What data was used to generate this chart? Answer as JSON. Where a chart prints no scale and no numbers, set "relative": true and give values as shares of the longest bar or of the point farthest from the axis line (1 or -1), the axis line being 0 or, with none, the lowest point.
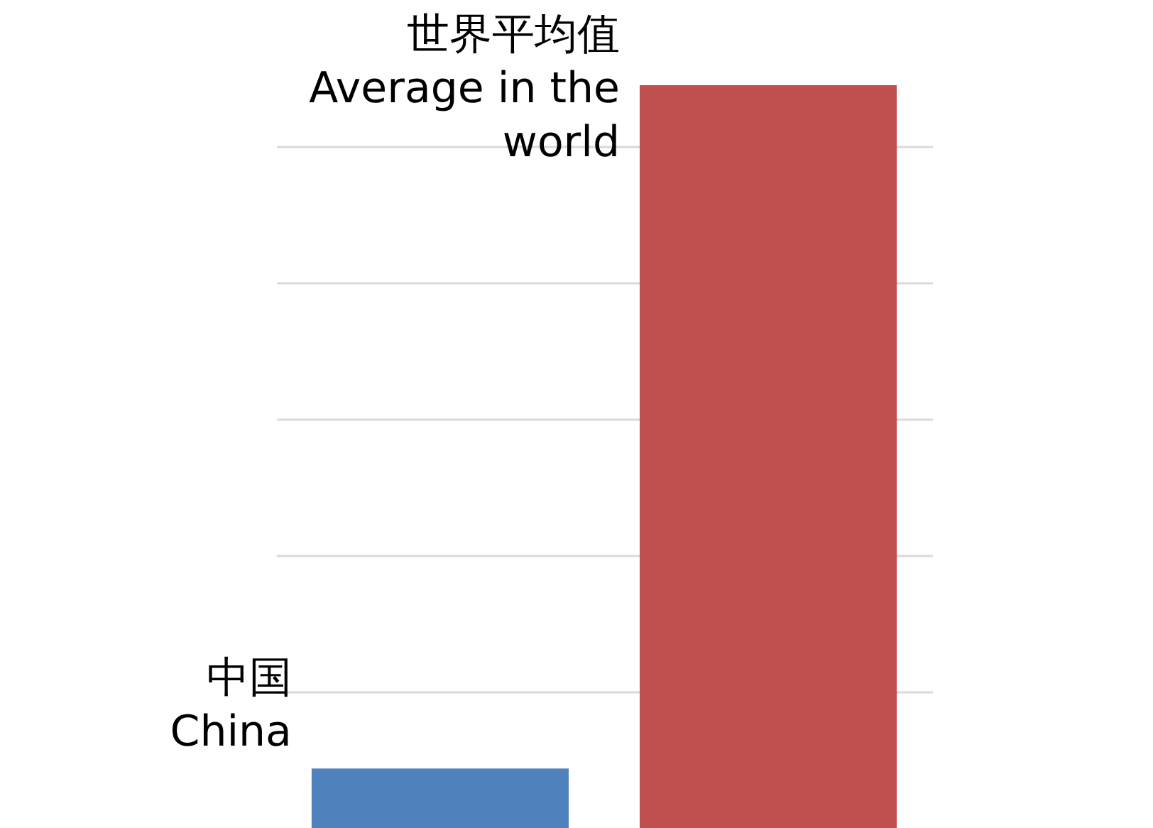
{
  "chart_data": {
    "type": "bar",
    "relative": true,
    "grid": "y",
    "categories": [
      null
    ],
    "series": [
      {
        "name": "中国\nChina",
        "color": "#4f81bd",
        "values": [
          0.08
        ]
      },
      {
        "name": "世界平均值\nAverage in the\nworld",
        "color": "#c0504d",
        "values": [
          1
        ]
      }
    ]
  }
}
